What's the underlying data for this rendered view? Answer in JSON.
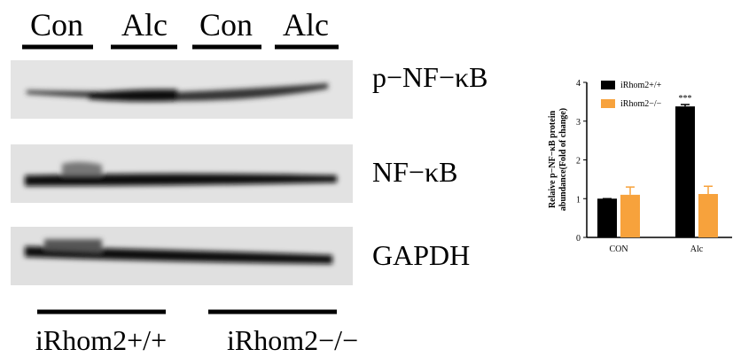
{
  "blot": {
    "lanes": [
      "Con",
      "Alc",
      "Con",
      "Alc"
    ],
    "rows": [
      "p−NF−κB",
      "NF−κB",
      "GAPDH"
    ],
    "groups": [
      "iRhom2+/+",
      "iRhom2−/−"
    ]
  },
  "chart_data": {
    "type": "bar",
    "y_label": [
      "Relaive p−NF−κB protein",
      "abundance(Fold of change)"
    ],
    "categories": [
      "CON",
      "Alc"
    ],
    "series": [
      {
        "name": "iRhom2+/+",
        "color": "#000000",
        "values": [
          1.0,
          3.38
        ],
        "errors": [
          0.0,
          0.05
        ]
      },
      {
        "name": "iRhom2−/−",
        "color": "#f7a23c",
        "values": [
          1.1,
          1.12
        ],
        "errors": [
          0.2,
          0.2
        ]
      }
    ],
    "annotations": [
      {
        "text": "***",
        "category": 1,
        "series": 0
      }
    ],
    "ylim": [
      0,
      4
    ],
    "yticks": [
      0,
      1,
      2,
      3,
      4
    ],
    "legend": "upper left"
  }
}
